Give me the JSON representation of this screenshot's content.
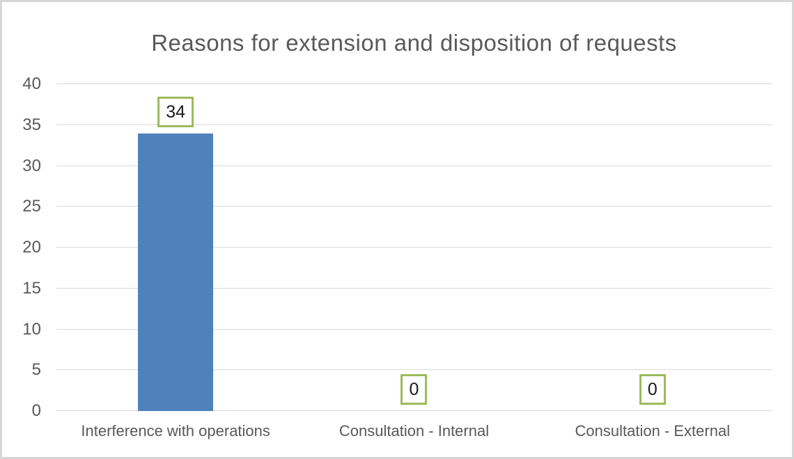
{
  "chart_data": {
    "type": "bar",
    "title": "Reasons for extension and disposition of requests",
    "categories": [
      "Interference with operations",
      "Consultation - Internal",
      "Consultation - External"
    ],
    "values": [
      34,
      0,
      0
    ],
    "data_labels": [
      "34",
      "0",
      "0"
    ],
    "xlabel": "",
    "ylabel": "",
    "ylim": [
      0,
      40
    ],
    "yticks": [
      0,
      5,
      10,
      15,
      20,
      25,
      30,
      35,
      40
    ],
    "grid": true,
    "legend": false,
    "colors": {
      "bar_fill": "#4F81BD",
      "data_label_border": "#9BBB59",
      "data_label_text": "#1a1a1a",
      "grid_line": "#D9D9D9",
      "axis_text": "#595959",
      "title_text": "#595959",
      "frame_border": "#D6D6D6",
      "background": "#FFFFFF"
    }
  }
}
